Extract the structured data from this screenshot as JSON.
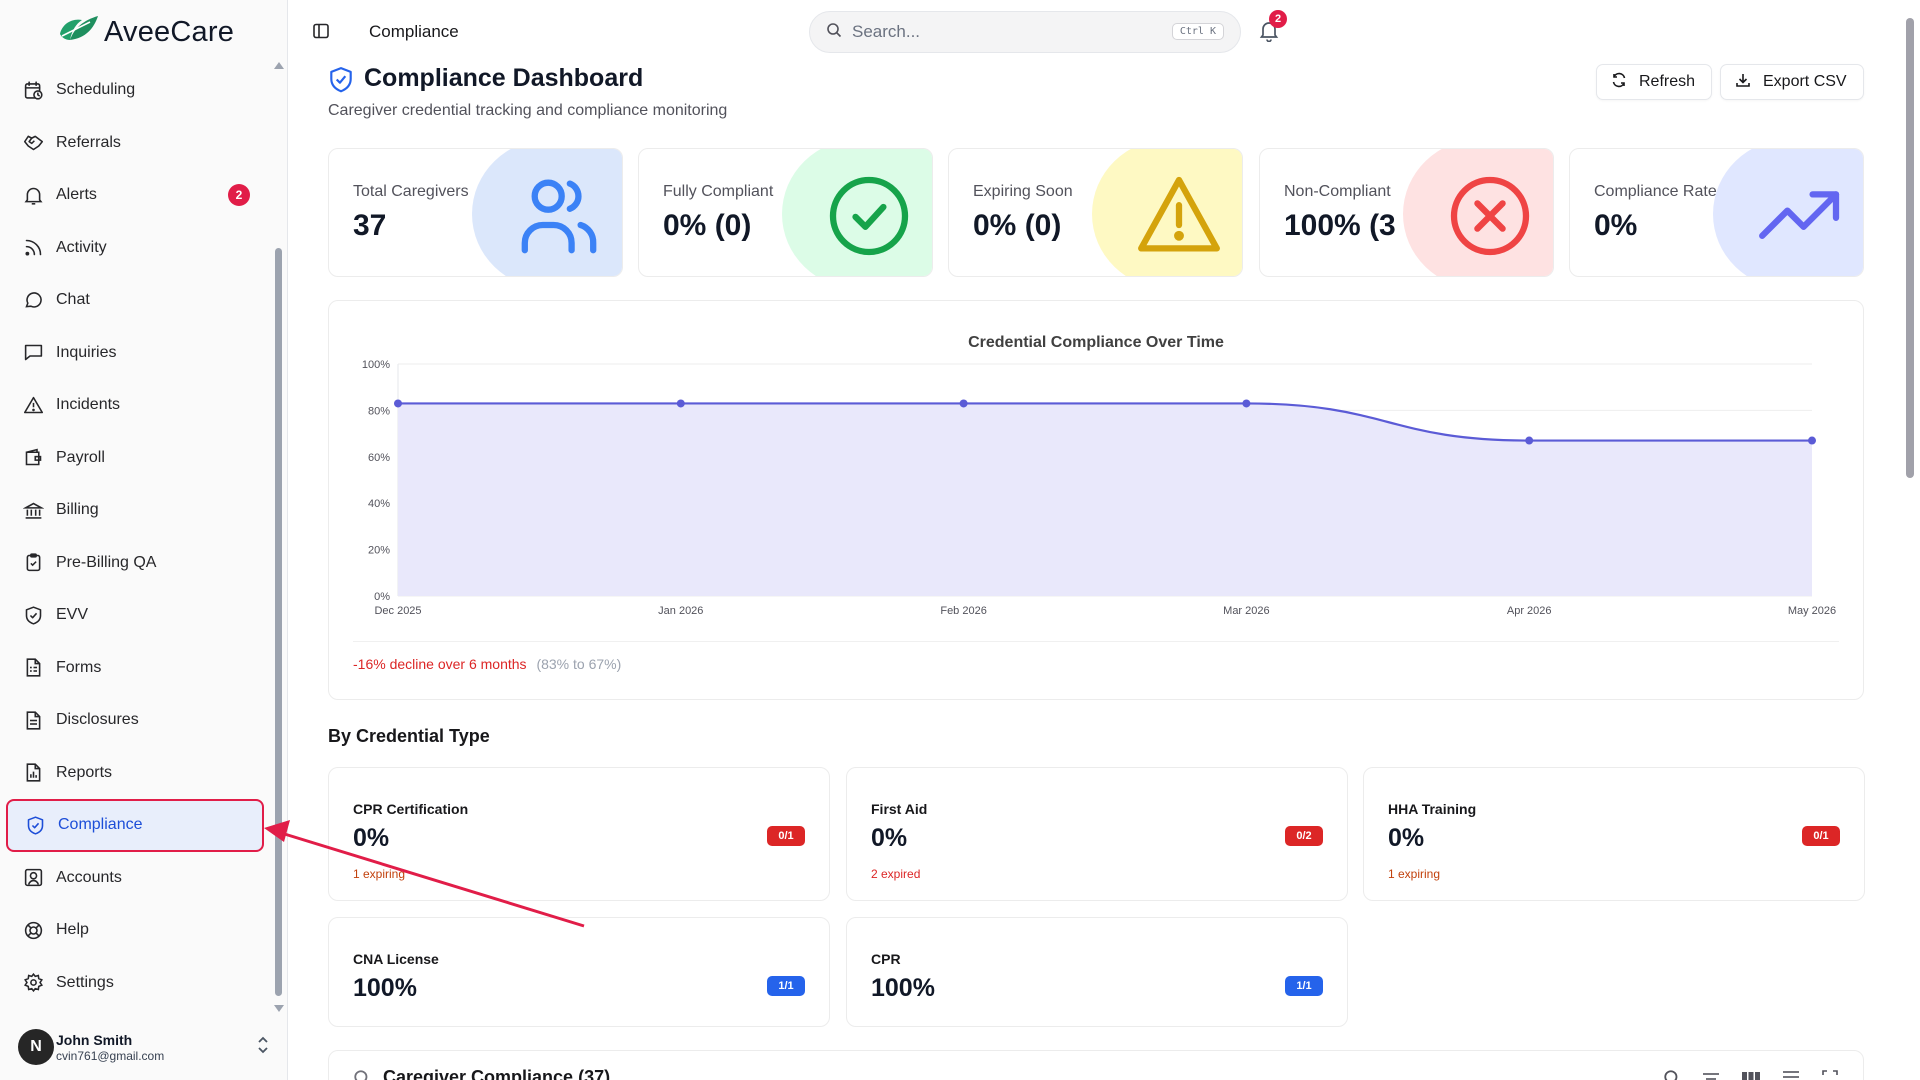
{
  "brand": {
    "name": "AveeCare"
  },
  "sidebar": {
    "items": [
      {
        "label": "Scheduling",
        "icon": "calendar-clock-icon",
        "active": false
      },
      {
        "label": "Referrals",
        "icon": "handshake-icon",
        "active": false
      },
      {
        "label": "Alerts",
        "icon": "bell-icon",
        "badge": "2",
        "active": false
      },
      {
        "label": "Activity",
        "icon": "rss-icon",
        "active": false
      },
      {
        "label": "Chat",
        "icon": "chat-bubble-icon",
        "active": false
      },
      {
        "label": "Inquiries",
        "icon": "message-square-icon",
        "active": false
      },
      {
        "label": "Incidents",
        "icon": "warning-triangle-icon",
        "active": false
      },
      {
        "label": "Payroll",
        "icon": "wallet-icon",
        "active": false
      },
      {
        "label": "Billing",
        "icon": "bank-icon",
        "active": false
      },
      {
        "label": "Pre-Billing QA",
        "icon": "clipboard-check-icon",
        "active": false
      },
      {
        "label": "EVV",
        "icon": "shield-check-icon",
        "active": false
      },
      {
        "label": "Forms",
        "icon": "form-icon",
        "active": false
      },
      {
        "label": "Disclosures",
        "icon": "document-icon",
        "active": false
      },
      {
        "label": "Reports",
        "icon": "report-chart-icon",
        "active": false
      },
      {
        "label": "Compliance",
        "icon": "shield-check-icon",
        "active": true
      },
      {
        "label": "Accounts",
        "icon": "user-square-icon",
        "active": false
      },
      {
        "label": "Help",
        "icon": "lifebuoy-icon",
        "active": false
      },
      {
        "label": "Settings",
        "icon": "gear-icon",
        "active": false
      }
    ],
    "user": {
      "initial": "N",
      "name": "John Smith",
      "email": "cvin761@gmail.com"
    }
  },
  "header": {
    "title": "Compliance",
    "search_placeholder": "Search...",
    "search_shortcut": "Ctrl K",
    "notification_count": "2"
  },
  "page": {
    "title": "Compliance Dashboard",
    "subtitle": "Caregiver credential tracking and compliance monitoring",
    "refresh_label": "Refresh",
    "export_label": "Export CSV"
  },
  "kpis": [
    {
      "label": "Total Caregivers",
      "value": "37",
      "icon": "users-icon",
      "color": "#3b82f6",
      "bg": "#dbe7fb"
    },
    {
      "label": "Fully Compliant",
      "value": "0% (0)",
      "icon": "check-circle-icon",
      "color": "#16a34a",
      "bg": "#dcfce7"
    },
    {
      "label": "Expiring Soon",
      "value": "0% (0)",
      "icon": "warning-triangle-icon",
      "color": "#d4a30c",
      "bg": "#fef9c3"
    },
    {
      "label": "Non-Compliant",
      "value": "100% (3",
      "icon": "x-circle-icon",
      "color": "#ef4444",
      "bg": "#fee2e2"
    },
    {
      "label": "Compliance Rate",
      "value": "0%",
      "icon": "trending-up-icon",
      "color": "#6366f1",
      "bg": "#e0e7ff"
    }
  ],
  "chart_data": {
    "type": "area",
    "title": "Credential Compliance Over Time",
    "x": [
      "Dec 2025",
      "Jan 2026",
      "Feb 2026",
      "Mar 2026",
      "Apr 2026",
      "May 2026"
    ],
    "series": [
      {
        "values": [
          83,
          83,
          83,
          83,
          67,
          67
        ]
      }
    ],
    "ylim": [
      0,
      100
    ],
    "y_ticks": [
      "0%",
      "20%",
      "40%",
      "60%",
      "80%",
      "100%"
    ],
    "grid": true,
    "colors": {
      "line": "#5b5bd6",
      "fill": "#e9e8fb"
    }
  },
  "chart_footer": {
    "decline": "-16% decline over 6 months",
    "range": "(83% to 67%)"
  },
  "credentials": {
    "section_title": "By Credential Type",
    "items": [
      {
        "name": "CPR Certification",
        "pct": "0%",
        "badge": "0/1",
        "badge_color": "#dc2626",
        "note": "1 expiring",
        "note_color": "#c2410c"
      },
      {
        "name": "First Aid",
        "pct": "0%",
        "badge": "0/2",
        "badge_color": "#dc2626",
        "note": "2 expired",
        "note_color": "#dc2626"
      },
      {
        "name": "HHA Training",
        "pct": "0%",
        "badge": "0/1",
        "badge_color": "#dc2626",
        "note": "1 expiring",
        "note_color": "#c2410c"
      },
      {
        "name": "CNA License",
        "pct": "100%",
        "badge": "1/1",
        "badge_color": "#2563eb",
        "note": "",
        "note_color": "#000"
      },
      {
        "name": "CPR",
        "pct": "100%",
        "badge": "1/1",
        "badge_color": "#2563eb",
        "note": "",
        "note_color": "#000"
      }
    ]
  },
  "table": {
    "title": "Caregiver Compliance (37)"
  }
}
